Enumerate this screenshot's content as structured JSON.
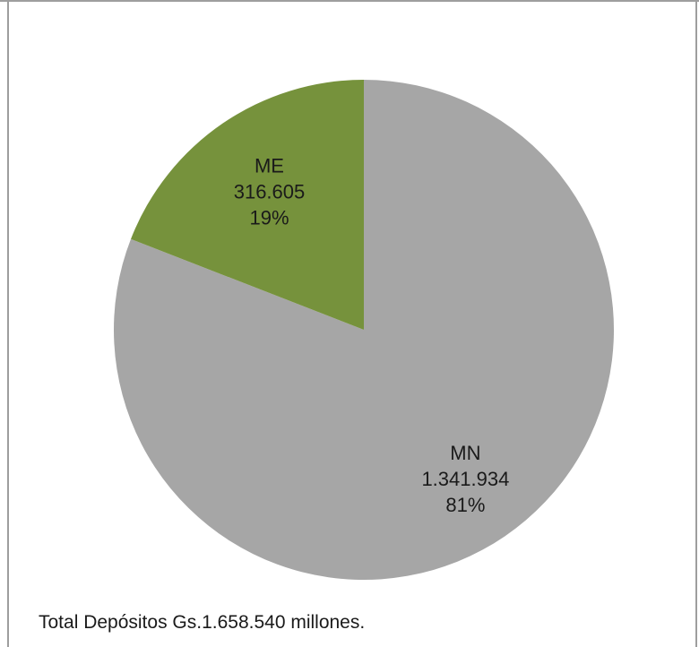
{
  "chart_data": {
    "type": "pie",
    "start_angle_deg": 90,
    "direction": "clockwise",
    "slices": [
      {
        "name": "MN",
        "value": 1341934,
        "value_label": "1.341.934",
        "percent_label": "81%",
        "color": "#a6a6a6"
      },
      {
        "name": "ME",
        "value": 316605,
        "value_label": "316.605",
        "percent_label": "19%",
        "color": "#76923c"
      }
    ]
  },
  "footnote": "Total Depósitos Gs.1.658.540 millones."
}
